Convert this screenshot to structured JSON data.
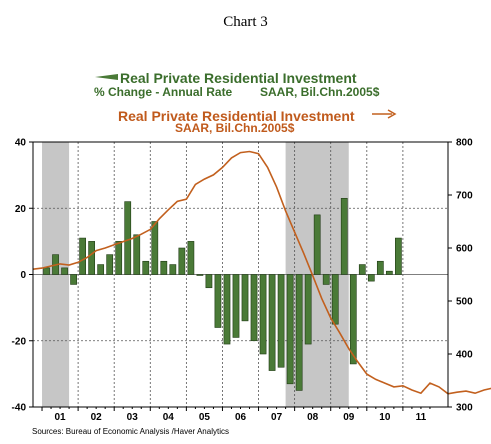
{
  "title": "Chart 3",
  "legend": {
    "bar_title": "Real Private Residential Investment",
    "bar_sub1": "% Change - Annual Rate",
    "bar_sub2": "SAAR, Bil.Chn.2005$",
    "line_title": "Real Private Residential Investment",
    "line_sub": "SAAR, Bil.Chn.2005$"
  },
  "source": "Sources:  Bureau of Economic Analysis /Haver Analytics",
  "colors": {
    "bar": "#4a7a37",
    "bar_edge": "#1f3a14",
    "line": "#c2601e",
    "recession": "#c6c6c6",
    "bar_legend": "#3b6e2c",
    "line_legend": "#c05a1c"
  },
  "chart_data": {
    "type": "bar+line",
    "x_years": [
      "01",
      "02",
      "03",
      "04",
      "05",
      "06",
      "07",
      "08",
      "09",
      "10",
      "11"
    ],
    "x_start": 2000.75,
    "x_end": 2012.25,
    "left_axis": {
      "ylim": [
        -40,
        40
      ],
      "ticks": [
        -40,
        -20,
        0,
        20,
        40
      ]
    },
    "right_axis": {
      "ylim": [
        300,
        800
      ],
      "ticks": [
        300,
        400,
        500,
        600,
        700,
        800
      ]
    },
    "recessions": [
      [
        2001.0,
        2001.75
      ],
      [
        2007.75,
        2009.5
      ]
    ],
    "bars": {
      "name": "Real Private Residential Investment, % Change - Annual Rate",
      "start": 2001.0,
      "values": [
        2,
        6,
        2,
        -3,
        11,
        10,
        3,
        6,
        10,
        22,
        12,
        4,
        16,
        4,
        3,
        8,
        10,
        0,
        -4,
        -16,
        -21,
        -19,
        -14,
        -20,
        -24,
        -29,
        -28,
        -33,
        -35,
        -21,
        18,
        -3,
        -15,
        23,
        -27,
        3,
        -2,
        4,
        1,
        11
      ]
    },
    "line": {
      "name": "Real Private Residential Investment, SAAR, Bil.Chn.2005$",
      "start": 2000.75,
      "values": [
        560,
        562,
        566,
        570,
        568,
        573,
        582,
        595,
        600,
        606,
        612,
        618,
        626,
        635,
        655,
        672,
        688,
        692,
        720,
        730,
        738,
        752,
        770,
        780,
        782,
        778,
        752,
        715,
        670,
        630,
        590,
        548,
        505,
        468,
        440,
        410,
        385,
        362,
        352,
        345,
        338,
        340,
        332,
        326,
        345,
        338,
        325,
        328,
        330,
        326,
        332,
        336,
        345
      ]
    }
  }
}
